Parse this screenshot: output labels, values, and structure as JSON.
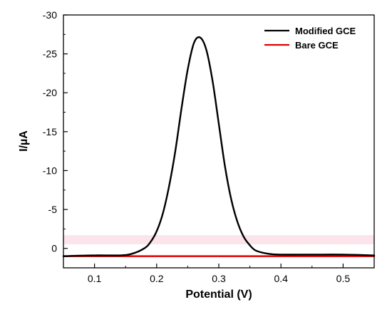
{
  "chart_data": {
    "type": "line",
    "title": "",
    "xlabel": "Potential (V)",
    "ylabel": "I/µA",
    "xlim": [
      0.05,
      0.55
    ],
    "ylim": [
      2.5,
      -30
    ],
    "y_inverted": true,
    "grid": false,
    "legend_position": "top-right",
    "x_ticks": [
      0.1,
      0.2,
      0.3,
      0.4,
      0.5
    ],
    "x_tick_labels": [
      "0.1",
      "0.2",
      "0.3",
      "0.4",
      "0.5"
    ],
    "y_ticks": [
      0,
      -5,
      -10,
      -15,
      -20,
      -25,
      -30
    ],
    "y_tick_labels": [
      "0",
      "-5",
      "-10",
      "-15",
      "-20",
      "-25",
      "-30"
    ],
    "series": [
      {
        "name": "Modified GCE",
        "color": "#000000",
        "x": [
          0.05,
          0.1,
          0.14,
          0.16,
          0.18,
          0.19,
          0.2,
          0.21,
          0.22,
          0.23,
          0.24,
          0.25,
          0.26,
          0.27,
          0.28,
          0.29,
          0.3,
          0.31,
          0.32,
          0.33,
          0.34,
          0.35,
          0.36,
          0.38,
          0.4,
          0.45,
          0.5,
          0.55
        ],
        "y": [
          1.0,
          0.9,
          0.9,
          0.7,
          0.0,
          -0.8,
          -2.2,
          -4.5,
          -8.0,
          -12.5,
          -18.0,
          -23.0,
          -26.4,
          -27.1,
          -25.5,
          -21.5,
          -16.0,
          -10.5,
          -6.3,
          -3.4,
          -1.5,
          -0.4,
          0.3,
          0.7,
          0.8,
          0.8,
          0.8,
          0.9
        ]
      },
      {
        "name": "Bare GCE",
        "color": "#e00000",
        "x": [
          0.05,
          0.15,
          0.25,
          0.35,
          0.45,
          0.55
        ],
        "y": [
          1.0,
          1.0,
          1.0,
          1.0,
          1.0,
          1.0
        ]
      }
    ]
  }
}
